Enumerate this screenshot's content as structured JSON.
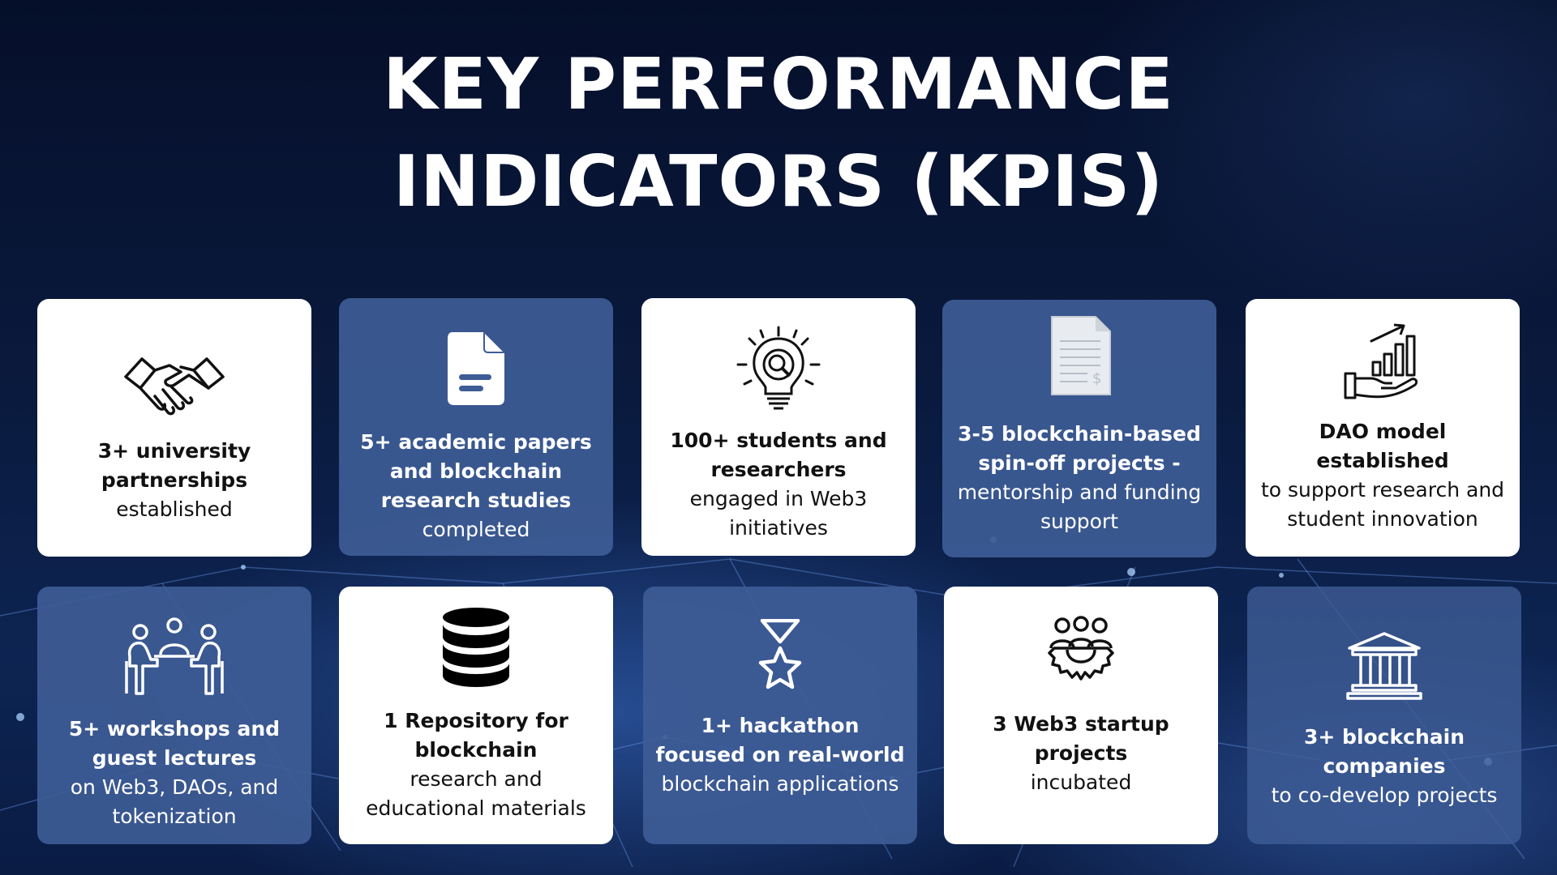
{
  "title": {
    "line1": "KEY PERFORMANCE",
    "line2": "INDICATORS (KPIS)"
  },
  "cards": [
    {
      "bold": "3+ university partnerships",
      "rest": "established",
      "icon": "handshake-icon"
    },
    {
      "bold": "5+ academic papers and blockchain research studies",
      "rest": "completed",
      "icon": "document-icon"
    },
    {
      "bold": "100+ students and researchers",
      "rest": "engaged in Web3 initiatives",
      "icon": "gear-lightbulb-icon"
    },
    {
      "bold": "3-5 blockchain-based spin-off projects -",
      "rest": "mentorship and funding support",
      "icon": "invoice-icon"
    },
    {
      "bold": "DAO model established",
      "rest": "to support research and student innovation",
      "icon": "growth-chart-hand-icon"
    },
    {
      "bold": "5+ workshops and guest lectures",
      "rest": "on Web3, DAOs, and tokenization",
      "icon": "meeting-icon"
    },
    {
      "bold": "1 Repository for blockchain",
      "rest": "research and educational materials",
      "icon": "database-icon"
    },
    {
      "bold": "1+ hackathon focused on real-world",
      "rest": "blockchain applications",
      "icon": "medal-star-icon"
    },
    {
      "bold": "3 Web3 startup projects",
      "rest": "incubated",
      "icon": "team-gear-icon"
    },
    {
      "bold": "3+ blockchain companies",
      "rest": "to co-develop projects",
      "icon": "institution-icon"
    }
  ]
}
